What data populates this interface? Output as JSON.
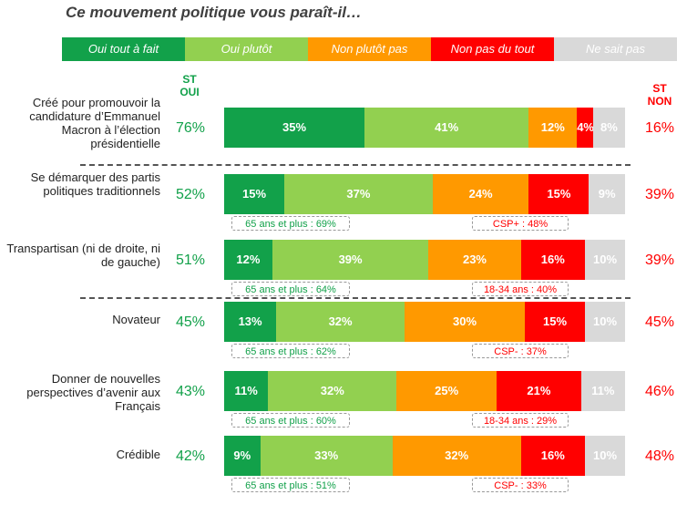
{
  "title": "Ce mouvement politique vous paraît-il…",
  "colors": {
    "oui_tout_a_fait": "#12a14a",
    "oui_plutot": "#92d050",
    "non_plutot_pas": "#ff9900",
    "non_pas_du_tout": "#ff0000",
    "ne_sait_pas": "#d9d9d9",
    "st_oui": "#12a14a",
    "st_non": "#ff0000"
  },
  "headers": {
    "st_oui": "ST OUI",
    "st_non": "ST NON"
  },
  "chart_data": {
    "type": "bar",
    "orientation": "horizontal",
    "stacked": true,
    "title": "Ce mouvement politique vous paraît-il…",
    "xlim": [
      0,
      100
    ],
    "legend_position": "top",
    "series": [
      {
        "key": "oui_tout_a_fait",
        "name": "Oui tout à fait",
        "values": [
          35,
          15,
          12,
          13,
          11,
          9
        ]
      },
      {
        "key": "oui_plutot",
        "name": "Oui plutôt",
        "values": [
          41,
          37,
          39,
          32,
          32,
          33
        ]
      },
      {
        "key": "non_plutot_pas",
        "name": "Non plutôt pas",
        "values": [
          12,
          24,
          23,
          30,
          25,
          32
        ]
      },
      {
        "key": "non_pas_du_tout",
        "name": "Non pas du tout",
        "values": [
          4,
          15,
          16,
          15,
          21,
          16
        ]
      },
      {
        "key": "ne_sait_pas",
        "name": "Ne sait pas",
        "values": [
          8,
          9,
          10,
          10,
          11,
          10
        ]
      }
    ],
    "rows": [
      {
        "label": "Créé pour promouvoir la candidature d’Emmanuel Macron à l’élection présidentielle",
        "st_oui": "76%",
        "st_non": "16%",
        "note_left": "",
        "note_right": ""
      },
      {
        "label": "Se démarquer des partis politiques traditionnels",
        "st_oui": "52%",
        "st_non": "39%",
        "note_left": "65 ans et plus : 69%",
        "note_right": "CSP+ : 48%"
      },
      {
        "label": "Transpartisan (ni de droite, ni de gauche)",
        "st_oui": "51%",
        "st_non": "39%",
        "note_left": "65 ans et plus : 64%",
        "note_right": "18-34 ans : 40%"
      },
      {
        "label": "Novateur",
        "st_oui": "45%",
        "st_non": "45%",
        "note_left": "65 ans et plus : 62%",
        "note_right": "CSP- : 37%"
      },
      {
        "label": "Donner de nouvelles perspectives d’avenir aux Français",
        "st_oui": "43%",
        "st_non": "46%",
        "note_left": "65 ans et plus : 60%",
        "note_right": "18-34 ans : 29%"
      },
      {
        "label": "Crédible",
        "st_oui": "42%",
        "st_non": "48%",
        "note_left": "65 ans et plus : 51%",
        "note_right": "CSP- : 33%"
      }
    ]
  }
}
